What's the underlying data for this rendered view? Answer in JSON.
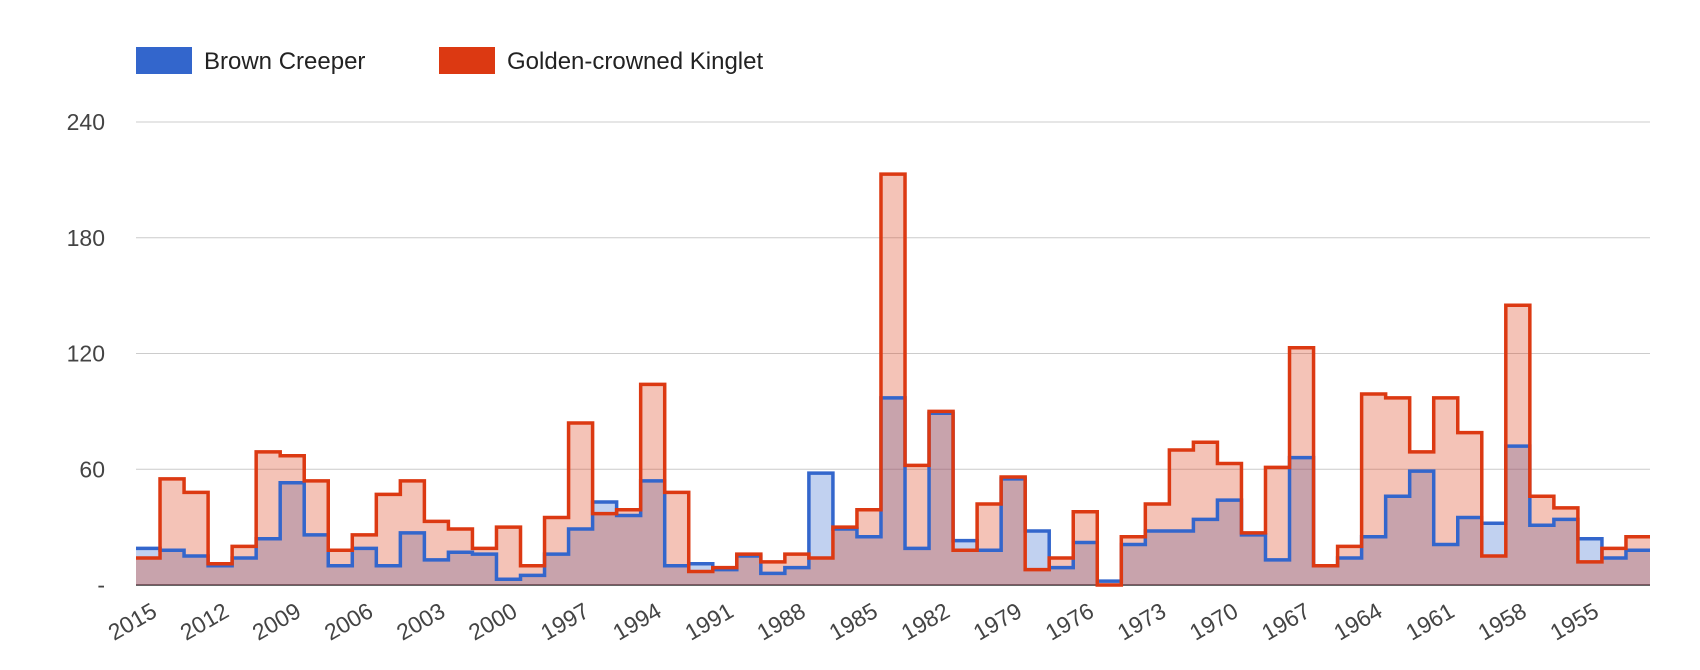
{
  "chart_data": {
    "type": "area",
    "title": "",
    "xlabel": "",
    "ylabel": "",
    "ylim": [
      0,
      240
    ],
    "yticks": [
      {
        "value": 0,
        "label": "-"
      },
      {
        "value": 60,
        "label": "60"
      },
      {
        "value": 120,
        "label": "120"
      },
      {
        "value": 180,
        "label": "180"
      },
      {
        "value": 240,
        "label": "240"
      }
    ],
    "x": [
      2015,
      2014,
      2013,
      2012,
      2011,
      2010,
      2009,
      2008,
      2007,
      2006,
      2005,
      2004,
      2003,
      2002,
      2001,
      2000,
      1999,
      1998,
      1997,
      1996,
      1995,
      1994,
      1993,
      1992,
      1991,
      1990,
      1989,
      1988,
      1987,
      1986,
      1985,
      1984,
      1983,
      1982,
      1981,
      1980,
      1979,
      1978,
      1977,
      1976,
      1975,
      1974,
      1973,
      1972,
      1971,
      1970,
      1969,
      1968,
      1967,
      1966,
      1965,
      1964,
      1963,
      1962,
      1961,
      1960,
      1959,
      1958,
      1957,
      1956,
      1955,
      1954,
      1953
    ],
    "x_tick_labels": [
      "2015",
      "2012",
      "2009",
      "2006",
      "2003",
      "2000",
      "1997",
      "1994",
      "1991",
      "1988",
      "1985",
      "1982",
      "1979",
      "1976",
      "1973",
      "1970",
      "1967",
      "1964",
      "1961",
      "1958",
      "1955"
    ],
    "x_reversed": true,
    "step": true,
    "grid": true,
    "legend_position": "top-left",
    "series": [
      {
        "name": "Brown Creeper",
        "color": "#3366cc",
        "values": [
          19,
          18,
          15,
          10,
          14,
          24,
          53,
          26,
          10,
          19,
          10,
          27,
          13,
          17,
          16,
          3,
          5,
          16,
          29,
          43,
          36,
          54,
          10,
          11,
          8,
          15,
          6,
          9,
          58,
          29,
          25,
          97,
          19,
          89,
          23,
          18,
          55,
          28,
          9,
          22,
          2,
          21,
          28,
          28,
          34,
          44,
          26,
          13,
          66,
          10,
          14,
          25,
          46,
          59,
          21,
          35,
          32,
          72,
          31,
          34,
          24,
          14,
          18
        ]
      },
      {
        "name": "Golden-crowned Kinglet",
        "color": "#dc3912",
        "values": [
          14,
          55,
          48,
          11,
          20,
          69,
          67,
          54,
          18,
          26,
          47,
          54,
          33,
          29,
          19,
          30,
          10,
          35,
          84,
          37,
          39,
          104,
          48,
          7,
          9,
          16,
          12,
          16,
          14,
          30,
          39,
          213,
          62,
          90,
          18,
          42,
          56,
          8,
          14,
          38,
          0,
          25,
          42,
          70,
          74,
          63,
          27,
          61,
          123,
          10,
          20,
          99,
          97,
          69,
          97,
          79,
          15,
          145,
          46,
          40,
          12,
          19,
          25
        ]
      }
    ]
  }
}
